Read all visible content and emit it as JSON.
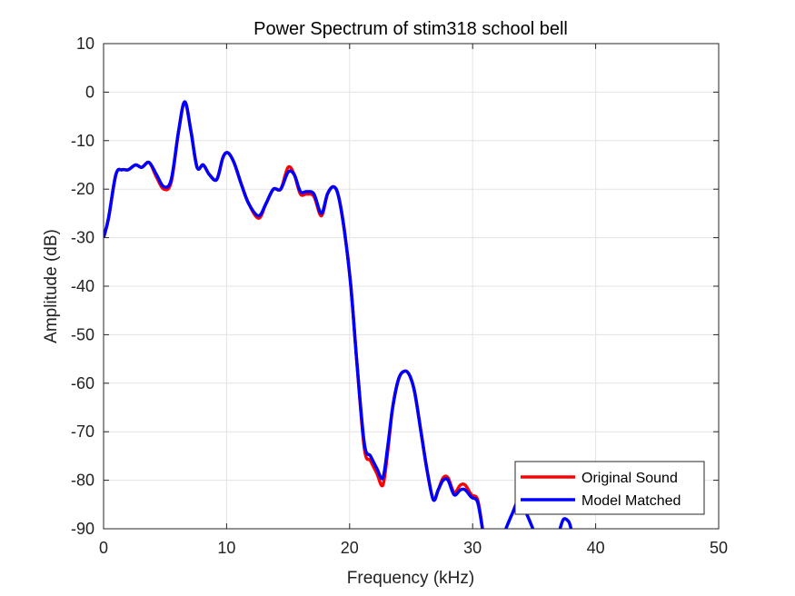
{
  "chart_data": {
    "type": "line",
    "title": "Power Spectrum of stim318 school bell",
    "xlabel": "Frequency (kHz)",
    "ylabel": "Amplitude (dB)",
    "xlim": [
      0,
      50
    ],
    "ylim": [
      -90,
      10
    ],
    "xticks": [
      0,
      10,
      20,
      30,
      40,
      50
    ],
    "xtick_labels": [
      "0",
      "10",
      "20",
      "30",
      "40",
      "50"
    ],
    "yticks": [
      10,
      0,
      -10,
      -20,
      -30,
      -40,
      -50,
      -60,
      -70,
      -80,
      -90
    ],
    "ytick_labels": [
      "10",
      "0",
      "-10",
      "-20",
      "-30",
      "-40",
      "-50",
      "-60",
      "-70",
      "-80",
      "-90"
    ],
    "grid": true,
    "legend_position": "bottom-right",
    "series": [
      {
        "name": "Original Sound",
        "color": "#ff0000",
        "x": [
          0,
          0.4,
          1.0,
          1.5,
          2.0,
          2.6,
          3.1,
          3.7,
          4.3,
          4.9,
          5.5,
          6.1,
          6.6,
          7.1,
          7.6,
          8.1,
          8.6,
          9.2,
          9.7,
          10.1,
          10.6,
          11.2,
          11.8,
          12.6,
          13.2,
          13.8,
          14.4,
          15.0,
          15.5,
          16.0,
          16.5,
          17.1,
          17.7,
          18.2,
          18.7,
          19.1,
          19.6,
          20.1,
          20.6,
          21.2,
          21.7,
          22.2,
          22.7,
          23.1,
          23.5,
          24.0,
          24.5,
          24.9,
          25.3,
          25.8,
          26.3,
          26.8,
          27.2,
          27.6,
          28.0,
          28.5,
          29.0,
          29.4,
          29.9,
          30.4,
          30.8
        ],
        "y": [
          -30,
          -26,
          -17,
          -16,
          -16,
          -15,
          -15.5,
          -14.5,
          -17.5,
          -20,
          -18.5,
          -8,
          -2,
          -8,
          -15.5,
          -15,
          -17,
          -18,
          -13.5,
          -12.5,
          -14.5,
          -19,
          -23,
          -26,
          -23,
          -20,
          -20,
          -15.5,
          -17,
          -21,
          -21,
          -21.5,
          -25.5,
          -21,
          -19.5,
          -21.5,
          -29,
          -40,
          -56,
          -73.5,
          -76,
          -78.5,
          -81,
          -74,
          -65,
          -59,
          -57.5,
          -58.5,
          -62,
          -70,
          -78,
          -84,
          -82,
          -79.5,
          -79.5,
          -82.5,
          -81,
          -81,
          -83,
          -84,
          -90
        ]
      },
      {
        "name": "Model Matched",
        "color": "#0000ff",
        "x": [
          0,
          0.4,
          1.0,
          1.5,
          2.0,
          2.6,
          3.1,
          3.7,
          4.3,
          4.9,
          5.5,
          6.1,
          6.6,
          7.1,
          7.6,
          8.1,
          8.6,
          9.2,
          9.7,
          10.1,
          10.6,
          11.2,
          11.8,
          12.6,
          13.2,
          13.8,
          14.4,
          15.0,
          15.5,
          16.0,
          16.5,
          17.1,
          17.7,
          18.2,
          18.7,
          19.1,
          19.6,
          20.1,
          20.6,
          21.2,
          21.7,
          22.2,
          22.7,
          23.1,
          23.5,
          24.0,
          24.5,
          24.9,
          25.3,
          25.8,
          26.3,
          26.8,
          27.2,
          27.6,
          28.0,
          28.5,
          29.0,
          29.4,
          29.9,
          30.4,
          30.8
        ],
        "y": [
          -30,
          -26,
          -17,
          -16,
          -16,
          -15,
          -15.5,
          -14.5,
          -17,
          -19.5,
          -18,
          -8,
          -2,
          -8,
          -15.5,
          -15,
          -17,
          -18,
          -13.5,
          -12.5,
          -14.5,
          -19,
          -23,
          -25.5,
          -23,
          -20,
          -20,
          -16.5,
          -17,
          -20.5,
          -20.5,
          -21,
          -25,
          -21,
          -19.5,
          -21.5,
          -29,
          -40,
          -56,
          -72.5,
          -75,
          -77.5,
          -79.5,
          -73,
          -65,
          -59,
          -57.5,
          -58.5,
          -62,
          -70,
          -78,
          -84,
          -82,
          -80,
          -80,
          -83,
          -82,
          -82,
          -83.5,
          -84.5,
          -90
        ]
      },
      {
        "name": "",
        "color": "#0000ff",
        "x": [
          32.7,
          33.2,
          33.8,
          34.4,
          34.9
        ],
        "y": [
          -90,
          -87,
          -84,
          -87,
          -90
        ]
      },
      {
        "name": "",
        "color": "#0000ff",
        "x": [
          37.1,
          37.4,
          37.8,
          38.0
        ],
        "y": [
          -90,
          -88,
          -88.5,
          -90
        ]
      }
    ]
  }
}
